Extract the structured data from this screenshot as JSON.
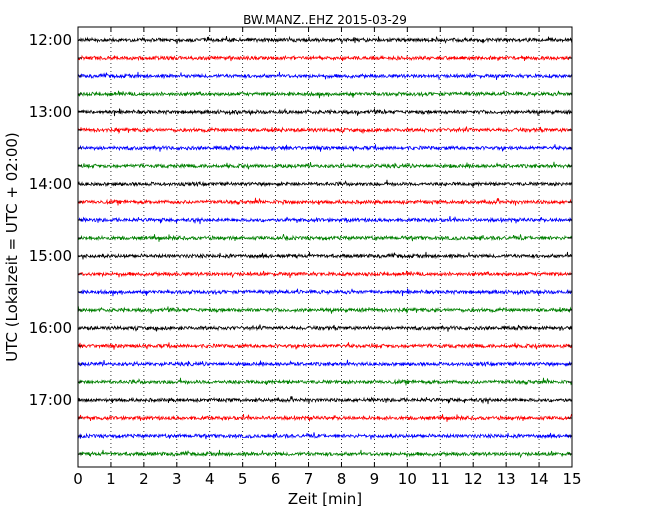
{
  "chart_data": {
    "type": "line",
    "subtype": "dayplot",
    "title": "BW.MANZ..EHZ 2015-03-29",
    "xlabel": "Zeit  [min]",
    "ylabel": "UTC (Lokalzeit = UTC + 02:00)",
    "xlim": [
      0,
      15
    ],
    "x_ticks": [
      "0",
      "1",
      "2",
      "3",
      "4",
      "5",
      "6",
      "7",
      "8",
      "9",
      "10",
      "11",
      "12",
      "13",
      "14",
      "15"
    ],
    "y_tick_labels": [
      "12:00",
      "13:00",
      "14:00",
      "15:00",
      "16:00",
      "17:00"
    ],
    "grid": "vertical dotted lines at each minute",
    "trace_interval_minutes": 15,
    "trace_colors": [
      "#000000",
      "#ff0000",
      "#0000ff",
      "#008000"
    ],
    "trace_start_times": [
      "12:00",
      "12:15",
      "12:30",
      "12:45",
      "13:00",
      "13:15",
      "13:30",
      "13:45",
      "14:00",
      "14:15",
      "14:30",
      "14:45",
      "15:00",
      "15:15",
      "15:30",
      "15:45",
      "16:00",
      "16:15",
      "16:30",
      "16:45",
      "17:00",
      "17:15",
      "17:30",
      "17:45"
    ]
  }
}
